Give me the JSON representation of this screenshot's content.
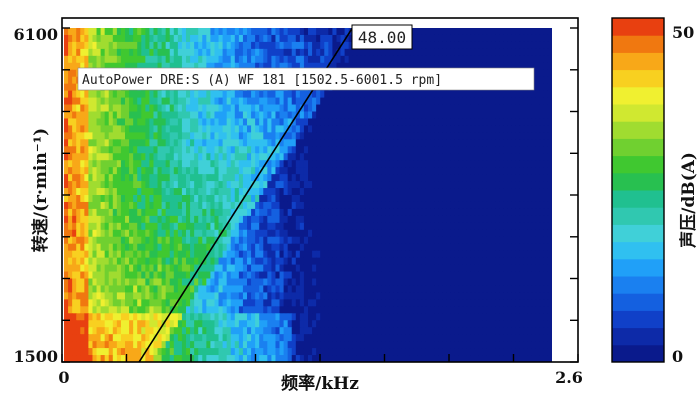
{
  "chart_data": {
    "type": "heatmap",
    "title": "",
    "overlay_text": "AutoPower DRE:S (A) WF 181 [1502.5-6001.5 rpm]",
    "order_line_label": "48.00",
    "order_line": {
      "order": 48.0,
      "x_start_khz": 0.4,
      "y_start_rpm": 1500,
      "x_end_khz": 1.55,
      "y_end_rpm": 6100
    },
    "xlabel": "频率/kHz",
    "ylabel": "转速/(r·min⁻¹)",
    "xlim": [
      0,
      2.6
    ],
    "ylim": [
      1500,
      6100
    ],
    "x_tick_labels": [
      "0",
      "2.6"
    ],
    "y_tick_labels": [
      "1500",
      "6100"
    ],
    "colorbar": {
      "label": "声压/dB(A)",
      "range": [
        0,
        50
      ],
      "tick_labels": [
        "0",
        "50"
      ],
      "colors": [
        "#0a1a8c",
        "#0d2aa8",
        "#1040c8",
        "#1460e0",
        "#1a80f0",
        "#20a0f8",
        "#30c0f0",
        "#40d0d8",
        "#30c8b0",
        "#20c090",
        "#28c050",
        "#40c830",
        "#70d030",
        "#a0dc30",
        "#d0e830",
        "#f0f030",
        "#f8d020",
        "#f8a818",
        "#f07810",
        "#e84010"
      ]
    }
  }
}
